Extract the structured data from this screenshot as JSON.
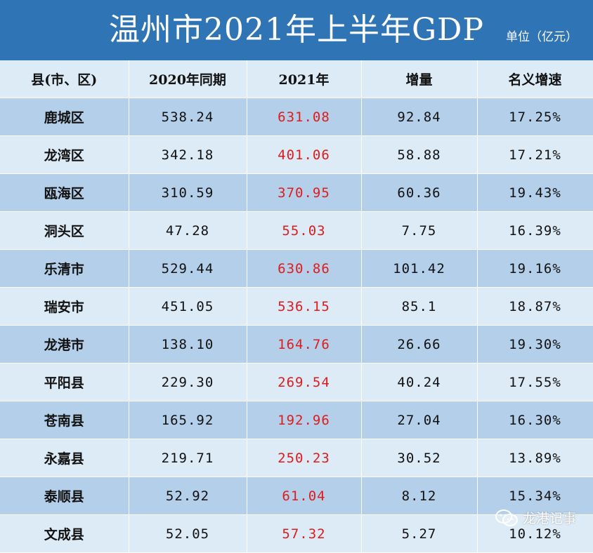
{
  "title": "温州市2021年上半年GDP",
  "unit": "单位（亿元）",
  "headers": [
    "县(市、区)",
    "2020年同期",
    "2021年",
    "增量",
    "名义增速"
  ],
  "rows": [
    {
      "region": "鹿城区",
      "y2020": "538.24",
      "y2021": "631.08",
      "increase": "92.84",
      "growth": "17.25%"
    },
    {
      "region": "龙湾区",
      "y2020": "342.18",
      "y2021": "401.06",
      "increase": "58.88",
      "growth": "17.21%"
    },
    {
      "region": "瓯海区",
      "y2020": "310.59",
      "y2021": "370.95",
      "increase": "60.36",
      "growth": "19.43%"
    },
    {
      "region": "洞头区",
      "y2020": "47.28",
      "y2021": "55.03",
      "increase": "7.75",
      "growth": "16.39%"
    },
    {
      "region": "乐清市",
      "y2020": "529.44",
      "y2021": "630.86",
      "increase": "101.42",
      "growth": "19.16%"
    },
    {
      "region": "瑞安市",
      "y2020": "451.05",
      "y2021": "536.15",
      "increase": "85.1",
      "growth": "18.87%"
    },
    {
      "region": "龙港市",
      "y2020": "138.10",
      "y2021": "164.76",
      "increase": "26.66",
      "growth": "19.30%"
    },
    {
      "region": "平阳县",
      "y2020": "229.30",
      "y2021": "269.54",
      "increase": "40.24",
      "growth": "17.55%"
    },
    {
      "region": "苍南县",
      "y2020": "165.92",
      "y2021": "192.96",
      "increase": "27.04",
      "growth": "16.30%"
    },
    {
      "region": "永嘉县",
      "y2020": "219.71",
      "y2021": "250.23",
      "increase": "30.52",
      "growth": "13.89%"
    },
    {
      "region": "泰顺县",
      "y2020": "52.92",
      "y2021": "61.04",
      "increase": "8.12",
      "growth": "15.34%"
    },
    {
      "region": "文成县",
      "y2020": "52.05",
      "y2021": "57.32",
      "increase": "5.27",
      "growth": "10.12%"
    }
  ],
  "watermark": {
    "text": "龙港记事",
    "icon": "wechat-icon"
  },
  "colors": {
    "title_bg": "#2f74b5",
    "row_dark": "#b4cfe9",
    "row_light": "#ddebf7",
    "highlight": "#e01b1b"
  }
}
